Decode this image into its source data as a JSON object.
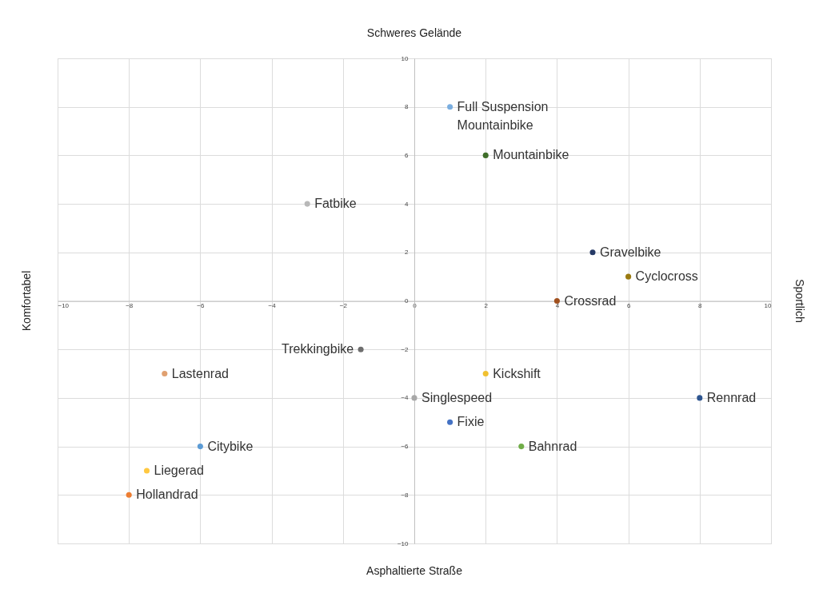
{
  "chart_data": {
    "type": "scatter",
    "title": "Schweres Gelände",
    "xlabel": "Asphaltierte Straße",
    "ylabel": "Komfortabel",
    "annotations": [
      "Sportlich"
    ],
    "xlim": [
      -10,
      10
    ],
    "ylim": [
      -10,
      10
    ],
    "xticks": [
      -10,
      -8,
      -6,
      -4,
      -2,
      0,
      2,
      4,
      6,
      8,
      10
    ],
    "yticks": [
      -10,
      -8,
      -6,
      -4,
      -2,
      0,
      2,
      4,
      6,
      8,
      10
    ],
    "grid": true,
    "legend": false,
    "marker": "circle",
    "series": [
      {
        "name": "Full Suspension Mountainbike",
        "color": "#7aaee0",
        "x": [
          1
        ],
        "values": [
          8
        ]
      },
      {
        "name": "Mountainbike",
        "color": "#3f6e2a",
        "x": [
          2
        ],
        "values": [
          6
        ]
      },
      {
        "name": "Fatbike",
        "color": "#b8b8b8",
        "x": [
          -3
        ],
        "values": [
          4
        ]
      },
      {
        "name": "Gravelbike",
        "color": "#253a66",
        "x": [
          5
        ],
        "values": [
          2
        ]
      },
      {
        "name": "Cyclocross",
        "color": "#9a7a10",
        "x": [
          6
        ],
        "values": [
          1
        ]
      },
      {
        "name": "Crossrad",
        "color": "#a0501e",
        "x": [
          4
        ],
        "values": [
          0
        ]
      },
      {
        "name": "Trekkingbike",
        "color": "#6e6e6e",
        "x": [
          -1.5
        ],
        "values": [
          -2
        ]
      },
      {
        "name": "Lastenrad",
        "color": "#e0a070",
        "x": [
          -7
        ],
        "values": [
          -3
        ]
      },
      {
        "name": "Kickshift",
        "color": "#f0c030",
        "x": [
          2
        ],
        "values": [
          -3
        ]
      },
      {
        "name": "Singlespeed",
        "color": "#a8a8a8",
        "x": [
          0
        ],
        "values": [
          -4
        ]
      },
      {
        "name": "Rennrad",
        "color": "#2e5590",
        "x": [
          8
        ],
        "values": [
          -4
        ]
      },
      {
        "name": "Fixie",
        "color": "#4472c4",
        "x": [
          1
        ],
        "values": [
          -5
        ]
      },
      {
        "name": "Bahnrad",
        "color": "#70ad47",
        "x": [
          3
        ],
        "values": [
          -6
        ]
      },
      {
        "name": "Citybike",
        "color": "#5b9bd5",
        "x": [
          -6
        ],
        "values": [
          -6
        ]
      },
      {
        "name": "Liegerad",
        "color": "#ffc840",
        "x": [
          -7.5
        ],
        "values": [
          -7
        ]
      },
      {
        "name": "Hollandrad",
        "color": "#ed7d31",
        "x": [
          -8
        ],
        "values": [
          -8
        ]
      }
    ]
  }
}
